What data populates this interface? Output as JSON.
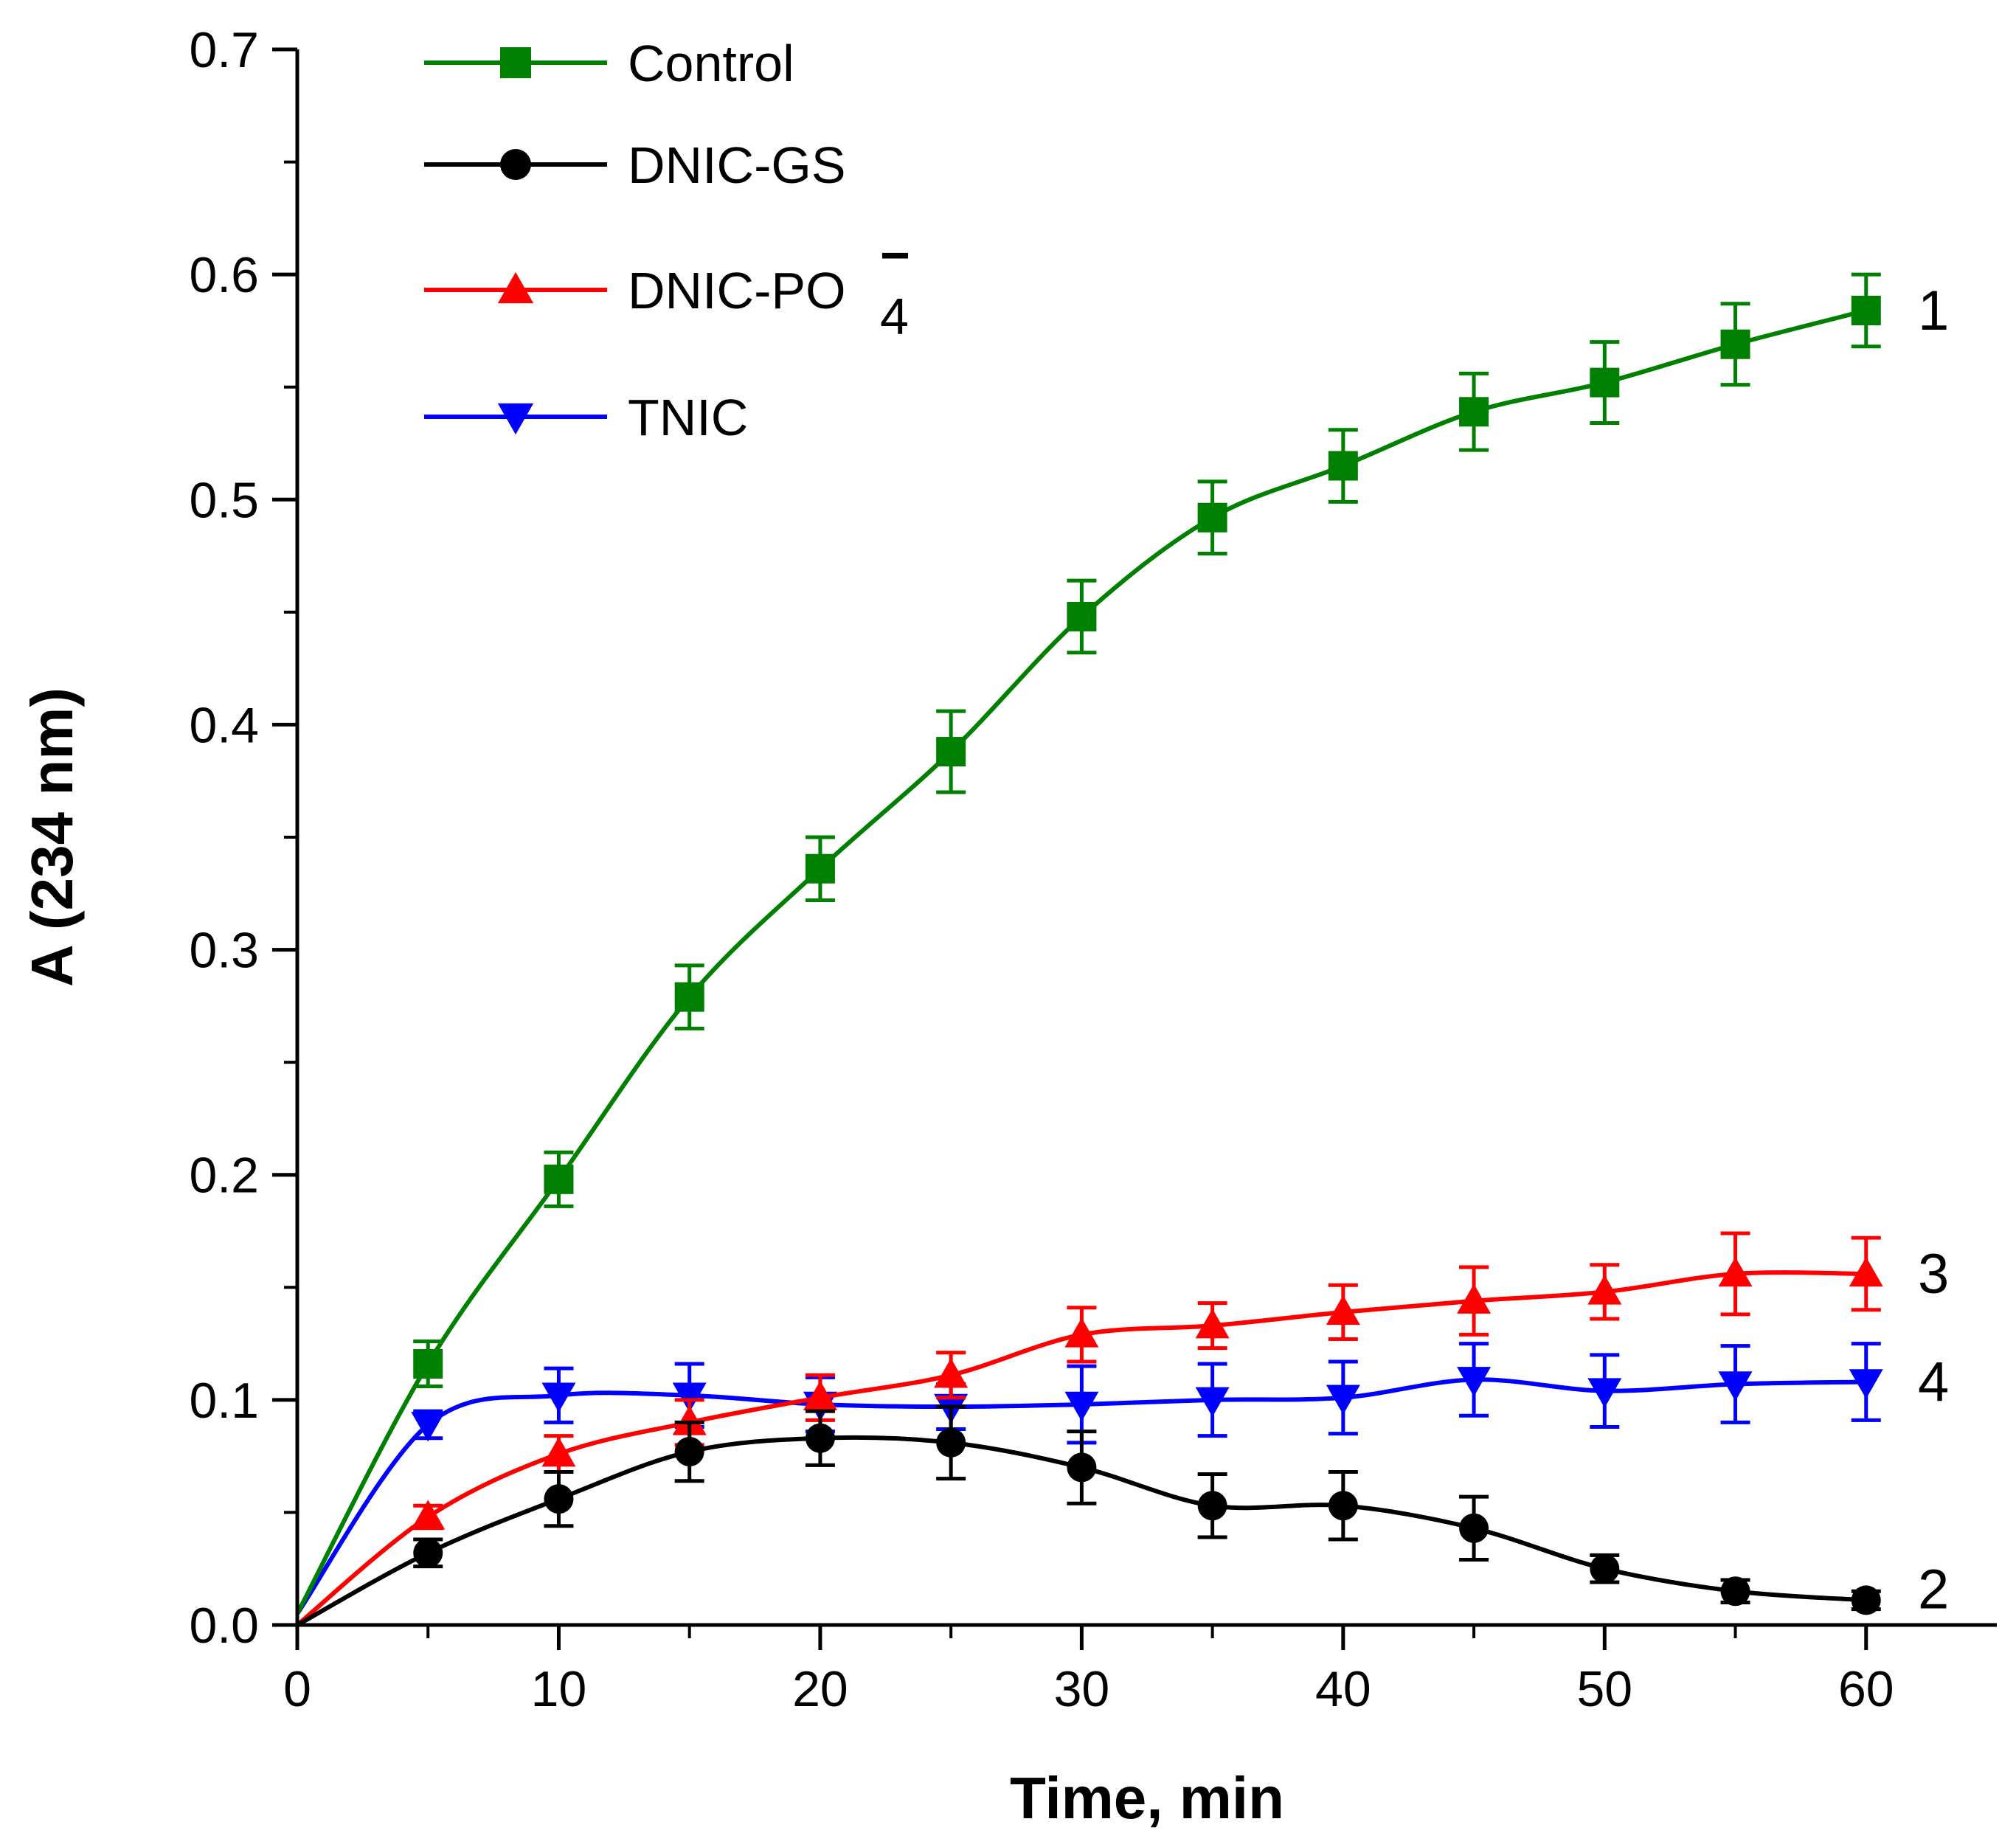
{
  "chart_data": {
    "type": "line",
    "title": "",
    "xlabel": "Time, min",
    "ylabel": "A (234 nm)",
    "xlim": [
      0,
      65
    ],
    "ylim": [
      0,
      0.7
    ],
    "x_ticks": [
      0,
      10,
      20,
      30,
      40,
      50,
      60
    ],
    "x_tick_labels": [
      "0",
      "10",
      "20",
      "30",
      "40",
      "50",
      "60"
    ],
    "y_ticks": [
      0,
      0.1,
      0.2,
      0.3,
      0.4,
      0.5,
      0.6,
      0.7
    ],
    "y_tick_labels": [
      "0.0",
      "0.1",
      "0.2",
      "0.3",
      "0.4",
      "0.5",
      "0.6",
      "0.7"
    ],
    "grid": false,
    "legend_position": "top-left",
    "series": [
      {
        "name": "Control",
        "legend_label": "Control",
        "curve_label": "1",
        "color": "#008000",
        "marker": "square",
        "x": [
          0,
          5,
          10,
          15,
          20,
          25,
          30,
          35,
          40,
          45,
          50,
          55,
          60
        ],
        "values": [
          0.005,
          0.116,
          0.198,
          0.279,
          0.336,
          0.388,
          0.448,
          0.492,
          0.515,
          0.539,
          0.552,
          0.569,
          0.584
        ],
        "errors": [
          0,
          0.01,
          0.012,
          0.014,
          0.014,
          0.018,
          0.016,
          0.016,
          0.016,
          0.017,
          0.018,
          0.018,
          0.016
        ]
      },
      {
        "name": "DNIC-GS",
        "legend_label": "DNIC-GS",
        "curve_label": "2",
        "color": "#000000",
        "marker": "circle",
        "x": [
          0,
          5,
          10,
          15,
          20,
          25,
          30,
          35,
          40,
          45,
          50,
          55,
          60
        ],
        "values": [
          0.0,
          0.032,
          0.056,
          0.077,
          0.083,
          0.081,
          0.07,
          0.053,
          0.053,
          0.043,
          0.025,
          0.015,
          0.011
        ],
        "errors": [
          0,
          0.006,
          0.012,
          0.013,
          0.012,
          0.016,
          0.016,
          0.014,
          0.015,
          0.014,
          0.006,
          0.005,
          0.004
        ]
      },
      {
        "name": "DNIC-PO4-",
        "legend_label": "DNIC-PO",
        "legend_subscript": "4",
        "legend_superscript": "−",
        "curve_label": "3",
        "color": "#ff0000",
        "marker": "triangle-up",
        "x": [
          0,
          5,
          10,
          15,
          20,
          25,
          30,
          35,
          40,
          45,
          50,
          55,
          60
        ],
        "values": [
          0.0,
          0.048,
          0.076,
          0.09,
          0.101,
          0.111,
          0.129,
          0.133,
          0.139,
          0.144,
          0.148,
          0.156,
          0.156
        ],
        "errors": [
          0,
          0.005,
          0.008,
          0.01,
          0.01,
          0.01,
          0.012,
          0.01,
          0.012,
          0.015,
          0.012,
          0.018,
          0.016
        ]
      },
      {
        "name": "TNIC",
        "legend_label": "TNIC",
        "curve_label": "4",
        "color": "#0000ff",
        "marker": "triangle-down",
        "x": [
          0,
          5,
          10,
          15,
          20,
          25,
          30,
          35,
          40,
          45,
          50,
          55,
          60
        ],
        "values": [
          0.005,
          0.089,
          0.102,
          0.102,
          0.098,
          0.097,
          0.098,
          0.1,
          0.101,
          0.109,
          0.104,
          0.107,
          0.108
        ],
        "errors": [
          0,
          0.006,
          0.012,
          0.014,
          0.012,
          0.01,
          0.017,
          0.016,
          0.016,
          0.016,
          0.016,
          0.017,
          0.017
        ]
      }
    ]
  }
}
